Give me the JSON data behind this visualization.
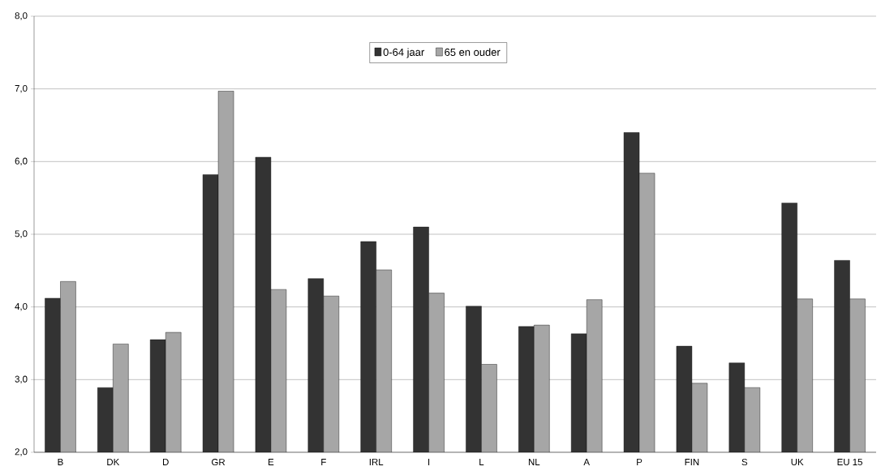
{
  "chart_data": {
    "type": "bar",
    "categories": [
      "B",
      "DK",
      "D",
      "GR",
      "E",
      "F",
      "IRL",
      "I",
      "L",
      "NL",
      "A",
      "P",
      "FIN",
      "S",
      "UK",
      "EU 15"
    ],
    "series": [
      {
        "name": "0-64 jaar",
        "color": "#333333",
        "values": [
          4.12,
          2.89,
          3.55,
          5.82,
          6.06,
          4.39,
          4.9,
          5.1,
          4.01,
          3.73,
          3.63,
          6.4,
          3.46,
          3.23,
          5.43,
          4.64
        ]
      },
      {
        "name": "65 en ouder",
        "color": "#a6a6a6",
        "values": [
          4.35,
          3.49,
          3.65,
          6.97,
          4.24,
          4.15,
          4.51,
          4.19,
          3.21,
          3.75,
          4.1,
          5.84,
          2.95,
          2.89,
          4.11,
          4.11
        ]
      }
    ],
    "ylim": [
      2,
      8
    ],
    "yticks": [
      {
        "value": 2,
        "label": "2,0"
      },
      {
        "value": 3,
        "label": "3,0"
      },
      {
        "value": 4,
        "label": "4,0"
      },
      {
        "value": 5,
        "label": "5,0"
      },
      {
        "value": 6,
        "label": "6,0"
      },
      {
        "value": 7,
        "label": "7,0"
      },
      {
        "value": 8,
        "label": "8,0"
      }
    ],
    "grid": "y",
    "legend": "top"
  }
}
